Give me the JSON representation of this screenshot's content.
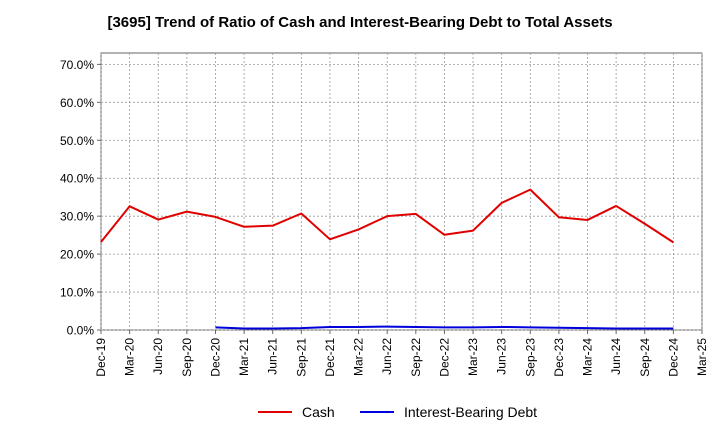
{
  "chart_data": {
    "type": "line",
    "title": "[3695]  Trend of Ratio of Cash and Interest-Bearing Debt to Total Assets",
    "xlabel": "",
    "ylabel": "",
    "categories": [
      "Dec-19",
      "Mar-20",
      "Jun-20",
      "Sep-20",
      "Dec-20",
      "Mar-21",
      "Jun-21",
      "Sep-21",
      "Dec-21",
      "Mar-22",
      "Jun-22",
      "Sep-22",
      "Dec-22",
      "Mar-23",
      "Jun-23",
      "Sep-23",
      "Dec-23",
      "Mar-24",
      "Jun-24",
      "Sep-24",
      "Dec-24",
      "Mar-25"
    ],
    "ylim": [
      0,
      73
    ],
    "yticks": [
      0,
      10,
      20,
      30,
      40,
      50,
      60,
      70
    ],
    "ytick_labels": [
      "0.0%",
      "10.0%",
      "20.0%",
      "30.0%",
      "40.0%",
      "50.0%",
      "60.0%",
      "70.0%"
    ],
    "grid": true,
    "legend_position": "bottom-center",
    "series": [
      {
        "name": "Cash",
        "color": "#e00000",
        "values": [
          23.2,
          32.6,
          29.1,
          31.2,
          29.8,
          27.2,
          27.5,
          30.7,
          23.9,
          26.5,
          30.0,
          30.6,
          25.1,
          26.2,
          33.5,
          37.0,
          29.7,
          29.0,
          32.7,
          28.0,
          23.1,
          null
        ]
      },
      {
        "name": "Interest-Bearing Debt",
        "color": "#0000dd",
        "values": [
          null,
          null,
          null,
          null,
          0.7,
          0.4,
          0.4,
          0.5,
          0.8,
          0.8,
          0.9,
          0.8,
          0.7,
          0.7,
          0.8,
          0.7,
          0.6,
          0.5,
          0.4,
          0.4,
          0.4,
          null
        ]
      }
    ]
  }
}
